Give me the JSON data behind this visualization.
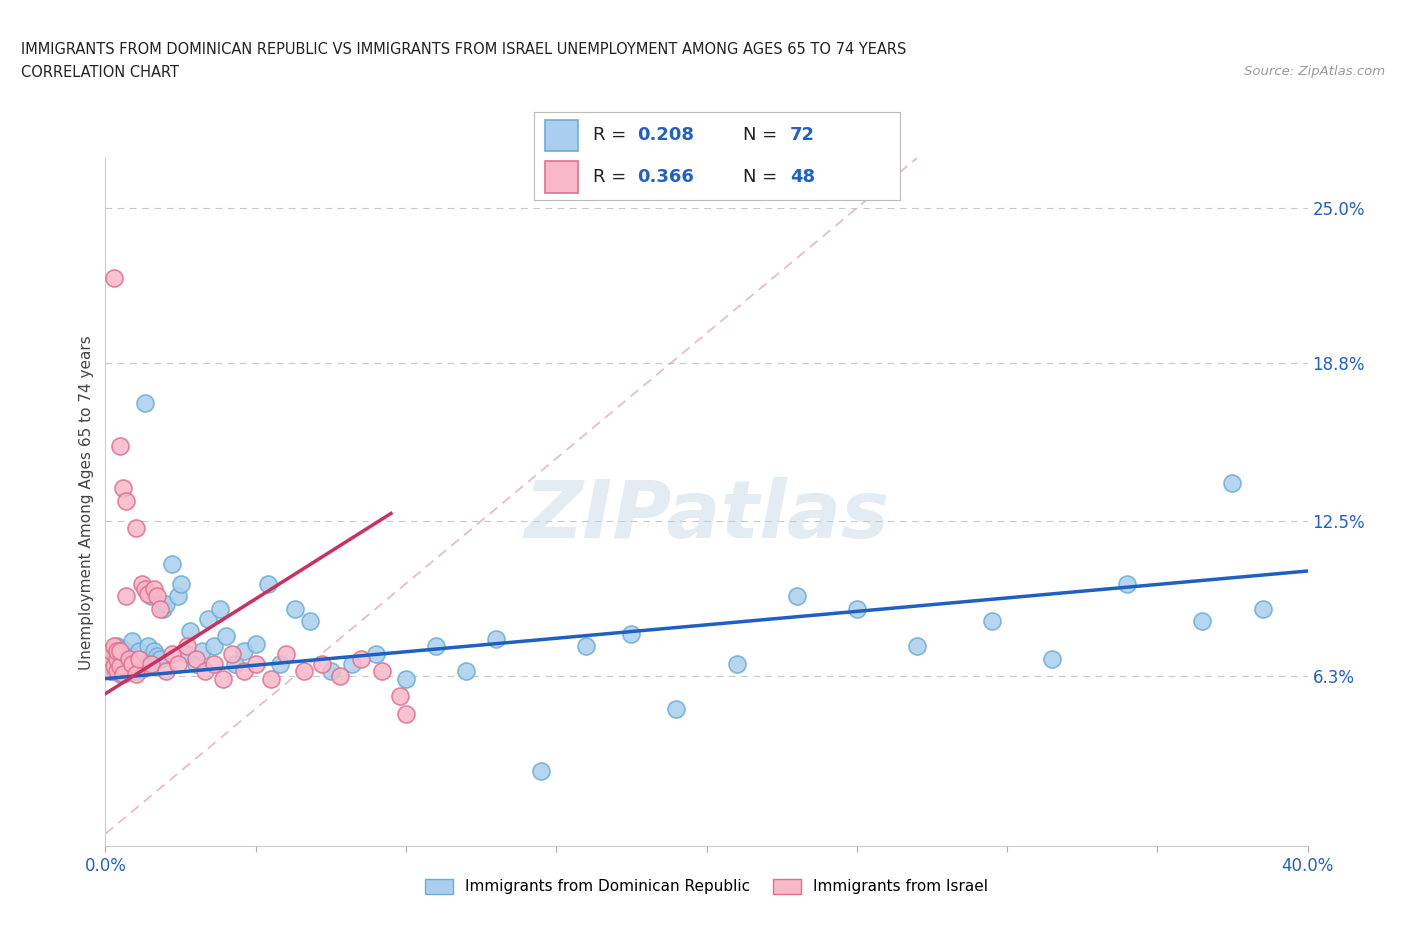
{
  "title_line1": "IMMIGRANTS FROM DOMINICAN REPUBLIC VS IMMIGRANTS FROM ISRAEL UNEMPLOYMENT AMONG AGES 65 TO 74 YEARS",
  "title_line2": "CORRELATION CHART",
  "source": "Source: ZipAtlas.com",
  "ylabel": "Unemployment Among Ages 65 to 74 years",
  "xlim": [
    0,
    0.4
  ],
  "ylim": [
    -0.005,
    0.27
  ],
  "xticks": [
    0.0,
    0.05,
    0.1,
    0.15,
    0.2,
    0.25,
    0.3,
    0.35,
    0.4
  ],
  "yticks_right": [
    0.063,
    0.125,
    0.188,
    0.25
  ],
  "yticklabels_right": [
    "6.3%",
    "12.5%",
    "18.8%",
    "25.0%"
  ],
  "series1_color": "#aacfee",
  "series1_edge": "#6aaed6",
  "series2_color": "#f9b8c8",
  "series2_edge": "#e07090",
  "trend1_color": "#2060c0",
  "trend2_color": "#cc3060",
  "legend_label1": "Immigrants from Dominican Republic",
  "legend_label2": "Immigrants from Israel",
  "watermark": "ZIPatlas",
  "series1_x": [
    0.001,
    0.002,
    0.002,
    0.003,
    0.003,
    0.003,
    0.004,
    0.004,
    0.004,
    0.005,
    0.005,
    0.005,
    0.006,
    0.006,
    0.007,
    0.007,
    0.008,
    0.008,
    0.009,
    0.009,
    0.01,
    0.01,
    0.011,
    0.012,
    0.013,
    0.014,
    0.015,
    0.015,
    0.016,
    0.017,
    0.018,
    0.019,
    0.02,
    0.022,
    0.024,
    0.025,
    0.027,
    0.028,
    0.03,
    0.032,
    0.034,
    0.036,
    0.038,
    0.04,
    0.043,
    0.046,
    0.05,
    0.054,
    0.058,
    0.063,
    0.068,
    0.075,
    0.082,
    0.09,
    0.1,
    0.11,
    0.12,
    0.13,
    0.145,
    0.16,
    0.175,
    0.19,
    0.21,
    0.23,
    0.25,
    0.27,
    0.295,
    0.315,
    0.34,
    0.365,
    0.375,
    0.385
  ],
  "series1_y": [
    0.068,
    0.071,
    0.065,
    0.07,
    0.073,
    0.066,
    0.069,
    0.075,
    0.067,
    0.072,
    0.064,
    0.068,
    0.074,
    0.066,
    0.07,
    0.073,
    0.065,
    0.071,
    0.068,
    0.077,
    0.069,
    0.065,
    0.073,
    0.066,
    0.172,
    0.075,
    0.069,
    0.095,
    0.073,
    0.071,
    0.07,
    0.09,
    0.092,
    0.108,
    0.095,
    0.1,
    0.072,
    0.081,
    0.068,
    0.073,
    0.086,
    0.075,
    0.09,
    0.079,
    0.068,
    0.073,
    0.076,
    0.1,
    0.068,
    0.09,
    0.085,
    0.065,
    0.068,
    0.072,
    0.062,
    0.075,
    0.065,
    0.078,
    0.025,
    0.075,
    0.08,
    0.05,
    0.068,
    0.095,
    0.09,
    0.075,
    0.085,
    0.07,
    0.1,
    0.085,
    0.14,
    0.09
  ],
  "series2_x": [
    0.001,
    0.002,
    0.002,
    0.003,
    0.003,
    0.003,
    0.004,
    0.004,
    0.004,
    0.005,
    0.005,
    0.005,
    0.006,
    0.006,
    0.007,
    0.007,
    0.008,
    0.009,
    0.01,
    0.01,
    0.011,
    0.012,
    0.013,
    0.014,
    0.015,
    0.016,
    0.017,
    0.018,
    0.02,
    0.022,
    0.024,
    0.027,
    0.03,
    0.033,
    0.036,
    0.039,
    0.042,
    0.046,
    0.05,
    0.055,
    0.06,
    0.066,
    0.072,
    0.078,
    0.085,
    0.092,
    0.098,
    0.1
  ],
  "series2_y": [
    0.068,
    0.065,
    0.073,
    0.067,
    0.075,
    0.222,
    0.065,
    0.07,
    0.073,
    0.067,
    0.073,
    0.155,
    0.064,
    0.138,
    0.095,
    0.133,
    0.07,
    0.068,
    0.064,
    0.122,
    0.07,
    0.1,
    0.098,
    0.096,
    0.068,
    0.098,
    0.095,
    0.09,
    0.065,
    0.072,
    0.068,
    0.075,
    0.07,
    0.065,
    0.068,
    0.062,
    0.072,
    0.065,
    0.068,
    0.062,
    0.072,
    0.065,
    0.068,
    0.063,
    0.07,
    0.065,
    0.055,
    0.048
  ],
  "trend1_x0": 0.0,
  "trend1_x1": 0.4,
  "trend1_y0": 0.062,
  "trend1_y1": 0.105,
  "trend2_x0": 0.0,
  "trend2_x1": 0.095,
  "trend2_y0": 0.056,
  "trend2_y1": 0.128
}
